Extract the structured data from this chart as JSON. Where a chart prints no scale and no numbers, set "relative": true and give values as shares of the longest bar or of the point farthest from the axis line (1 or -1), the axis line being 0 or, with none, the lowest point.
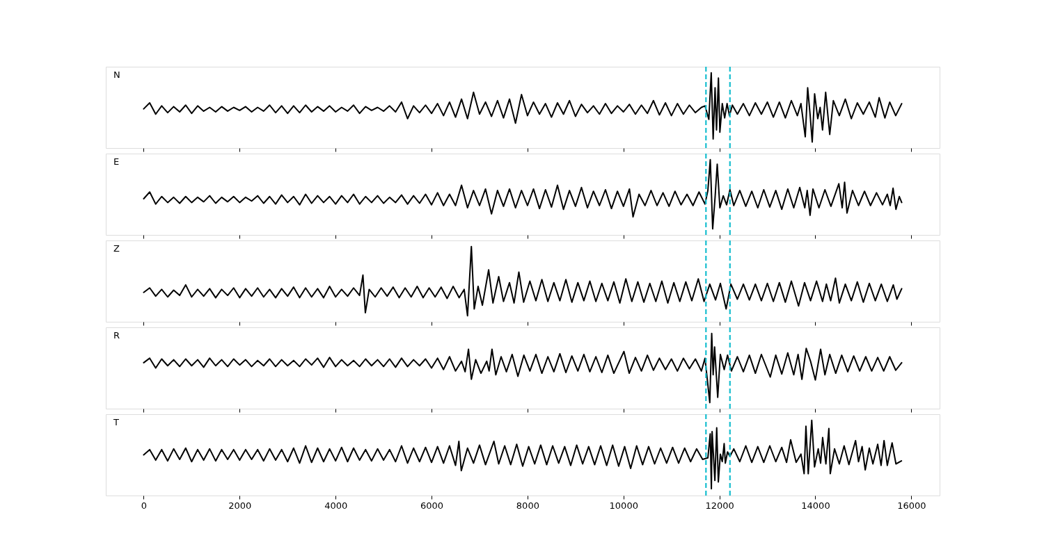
{
  "chart_data": [
    {
      "type": "line",
      "relative": true,
      "annotations": [
        "N"
      ],
      "line_style": "solid",
      "tick_labels": false,
      "xlim": [
        -790,
        16590
      ],
      "xticks": [
        0,
        2000,
        4000,
        6000,
        8000,
        10000,
        12000,
        14000,
        16000
      ],
      "ref_lines": [
        {
          "axis": "x",
          "value": 11720,
          "color": "#17becf",
          "line_style": "dashed"
        },
        {
          "axis": "x",
          "value": 12220,
          "color": "#17becf",
          "line_style": "dashed"
        }
      ],
      "x": [
        0,
        125,
        250,
        375,
        500,
        625,
        750,
        875,
        1000,
        1125,
        1250,
        1375,
        1500,
        1625,
        1750,
        1875,
        2000,
        2125,
        2250,
        2375,
        2500,
        2625,
        2750,
        2875,
        3000,
        3125,
        3250,
        3375,
        3500,
        3625,
        3750,
        3875,
        4000,
        4125,
        4250,
        4375,
        4500,
        4625,
        4750,
        4875,
        5000,
        5125,
        5250,
        5375,
        5500,
        5625,
        5750,
        5875,
        6000,
        6125,
        6250,
        6375,
        6500,
        6625,
        6750,
        6875,
        7000,
        7125,
        7250,
        7375,
        7500,
        7625,
        7750,
        7875,
        8000,
        8125,
        8250,
        8375,
        8500,
        8625,
        8750,
        8875,
        9000,
        9125,
        9250,
        9375,
        9500,
        9625,
        9750,
        9875,
        10000,
        10125,
        10250,
        10375,
        10500,
        10625,
        10750,
        10875,
        11000,
        11125,
        11250,
        11375,
        11500,
        11625,
        11700,
        11780,
        11830,
        11870,
        11910,
        11940,
        11980,
        12010,
        12060,
        12110,
        12160,
        12210,
        12270,
        12375,
        12500,
        12625,
        12750,
        12875,
        13000,
        13125,
        13250,
        13375,
        13500,
        13625,
        13700,
        13790,
        13840,
        13890,
        13935,
        13985,
        14050,
        14100,
        14150,
        14215,
        14300,
        14375,
        14500,
        14625,
        14750,
        14875,
        15000,
        15125,
        15250,
        15330,
        15450,
        15550,
        15675,
        15800
      ],
      "series": [
        {
          "color": "#000000",
          "values": [
            0.52,
            0.6,
            0.45,
            0.56,
            0.47,
            0.55,
            0.48,
            0.57,
            0.46,
            0.56,
            0.49,
            0.54,
            0.48,
            0.55,
            0.49,
            0.54,
            0.5,
            0.55,
            0.48,
            0.54,
            0.49,
            0.57,
            0.47,
            0.56,
            0.46,
            0.56,
            0.47,
            0.57,
            0.48,
            0.55,
            0.49,
            0.56,
            0.48,
            0.54,
            0.49,
            0.57,
            0.46,
            0.55,
            0.5,
            0.54,
            0.49,
            0.56,
            0.48,
            0.61,
            0.39,
            0.56,
            0.47,
            0.57,
            0.46,
            0.59,
            0.43,
            0.61,
            0.41,
            0.65,
            0.39,
            0.74,
            0.45,
            0.61,
            0.42,
            0.63,
            0.4,
            0.65,
            0.33,
            0.71,
            0.43,
            0.61,
            0.45,
            0.59,
            0.41,
            0.6,
            0.45,
            0.63,
            0.42,
            0.58,
            0.47,
            0.56,
            0.45,
            0.59,
            0.46,
            0.56,
            0.48,
            0.58,
            0.45,
            0.57,
            0.46,
            0.63,
            0.44,
            0.6,
            0.43,
            0.59,
            0.45,
            0.57,
            0.47,
            0.54,
            0.56,
            0.38,
            1.0,
            0.12,
            0.8,
            0.24,
            0.93,
            0.21,
            0.59,
            0.4,
            0.59,
            0.43,
            0.57,
            0.45,
            0.59,
            0.43,
            0.6,
            0.45,
            0.61,
            0.41,
            0.61,
            0.4,
            0.63,
            0.43,
            0.59,
            0.15,
            0.8,
            0.45,
            0.08,
            0.72,
            0.39,
            0.54,
            0.24,
            0.74,
            0.18,
            0.63,
            0.43,
            0.65,
            0.39,
            0.6,
            0.45,
            0.61,
            0.41,
            0.67,
            0.4,
            0.61,
            0.43,
            0.59
          ]
        }
      ]
    },
    {
      "type": "line",
      "relative": true,
      "annotations": [
        "E"
      ],
      "line_style": "solid",
      "tick_labels": false,
      "xlim": [
        -790,
        16590
      ],
      "xticks": [
        0,
        2000,
        4000,
        6000,
        8000,
        10000,
        12000,
        14000,
        16000
      ],
      "ref_lines": [
        {
          "axis": "x",
          "value": 11720,
          "color": "#17becf",
          "line_style": "dashed"
        },
        {
          "axis": "x",
          "value": 12220,
          "color": "#17becf",
          "line_style": "dashed"
        }
      ],
      "x": [
        0,
        125,
        250,
        375,
        500,
        625,
        750,
        875,
        1000,
        1125,
        1250,
        1375,
        1500,
        1625,
        1750,
        1875,
        2000,
        2125,
        2250,
        2375,
        2500,
        2625,
        2750,
        2875,
        3000,
        3125,
        3250,
        3375,
        3500,
        3625,
        3750,
        3875,
        4000,
        4125,
        4250,
        4375,
        4500,
        4625,
        4750,
        4875,
        5000,
        5125,
        5250,
        5375,
        5500,
        5625,
        5750,
        5875,
        6000,
        6125,
        6250,
        6375,
        6500,
        6625,
        6750,
        6875,
        7000,
        7125,
        7250,
        7375,
        7500,
        7625,
        7750,
        7875,
        8000,
        8125,
        8250,
        8375,
        8500,
        8625,
        8750,
        8875,
        9000,
        9125,
        9250,
        9375,
        9500,
        9625,
        9750,
        9875,
        10000,
        10125,
        10200,
        10325,
        10450,
        10575,
        10700,
        10825,
        10950,
        11075,
        11200,
        11325,
        11450,
        11575,
        11700,
        11760,
        11810,
        11860,
        11910,
        11955,
        12010,
        12080,
        12150,
        12220,
        12300,
        12425,
        12550,
        12675,
        12800,
        12925,
        13050,
        13175,
        13300,
        13425,
        13550,
        13675,
        13780,
        13830,
        13890,
        13950,
        14075,
        14200,
        14325,
        14490,
        14560,
        14610,
        14660,
        14775,
        14900,
        15025,
        15150,
        15275,
        15400,
        15500,
        15560,
        15620,
        15680,
        15750,
        15800
      ],
      "series": [
        {
          "color": "#000000",
          "values": [
            0.48,
            0.57,
            0.41,
            0.51,
            0.43,
            0.5,
            0.42,
            0.51,
            0.43,
            0.5,
            0.44,
            0.52,
            0.42,
            0.5,
            0.44,
            0.51,
            0.43,
            0.5,
            0.45,
            0.52,
            0.42,
            0.51,
            0.41,
            0.53,
            0.43,
            0.51,
            0.4,
            0.54,
            0.42,
            0.52,
            0.43,
            0.51,
            0.41,
            0.52,
            0.43,
            0.54,
            0.41,
            0.51,
            0.43,
            0.52,
            0.42,
            0.5,
            0.43,
            0.53,
            0.41,
            0.52,
            0.42,
            0.54,
            0.4,
            0.56,
            0.39,
            0.54,
            0.39,
            0.66,
            0.36,
            0.59,
            0.39,
            0.61,
            0.28,
            0.59,
            0.38,
            0.61,
            0.36,
            0.59,
            0.39,
            0.61,
            0.35,
            0.6,
            0.37,
            0.66,
            0.34,
            0.59,
            0.38,
            0.63,
            0.36,
            0.58,
            0.39,
            0.6,
            0.35,
            0.58,
            0.38,
            0.61,
            0.24,
            0.54,
            0.39,
            0.59,
            0.39,
            0.56,
            0.38,
            0.58,
            0.4,
            0.54,
            0.39,
            0.57,
            0.41,
            0.59,
            1.0,
            0.08,
            0.5,
            0.94,
            0.36,
            0.52,
            0.4,
            0.6,
            0.39,
            0.59,
            0.38,
            0.58,
            0.36,
            0.6,
            0.37,
            0.59,
            0.34,
            0.61,
            0.36,
            0.63,
            0.36,
            0.59,
            0.26,
            0.61,
            0.36,
            0.6,
            0.38,
            0.68,
            0.36,
            0.7,
            0.29,
            0.59,
            0.39,
            0.58,
            0.39,
            0.56,
            0.4,
            0.54,
            0.39,
            0.62,
            0.34,
            0.51,
            0.43
          ]
        }
      ]
    },
    {
      "type": "line",
      "relative": true,
      "annotations": [
        "Z"
      ],
      "line_style": "solid",
      "tick_labels": false,
      "xlim": [
        -790,
        16590
      ],
      "xticks": [
        0,
        2000,
        4000,
        6000,
        8000,
        10000,
        12000,
        14000,
        16000
      ],
      "ref_lines": [
        {
          "axis": "x",
          "value": 11720,
          "color": "#17becf",
          "line_style": "dashed"
        },
        {
          "axis": "x",
          "value": 12220,
          "color": "#17becf",
          "line_style": "dashed"
        }
      ],
      "x": [
        0,
        125,
        250,
        375,
        500,
        625,
        750,
        875,
        1000,
        1125,
        1250,
        1375,
        1500,
        1625,
        1750,
        1875,
        2000,
        2125,
        2250,
        2375,
        2500,
        2625,
        2750,
        2875,
        3000,
        3125,
        3250,
        3375,
        3500,
        3625,
        3750,
        3875,
        4000,
        4125,
        4250,
        4375,
        4500,
        4570,
        4620,
        4700,
        4825,
        4950,
        5075,
        5200,
        5325,
        5450,
        5575,
        5700,
        5825,
        5950,
        6075,
        6200,
        6325,
        6450,
        6575,
        6680,
        6750,
        6830,
        6890,
        6970,
        7060,
        7190,
        7280,
        7400,
        7500,
        7625,
        7720,
        7820,
        7920,
        8050,
        8175,
        8300,
        8425,
        8550,
        8675,
        8800,
        8925,
        9050,
        9175,
        9300,
        9425,
        9550,
        9675,
        9800,
        9925,
        10050,
        10175,
        10300,
        10425,
        10550,
        10675,
        10800,
        10925,
        11050,
        11175,
        11300,
        11425,
        11560,
        11680,
        11800,
        11920,
        12020,
        12140,
        12240,
        12375,
        12500,
        12625,
        12750,
        12875,
        13000,
        13125,
        13250,
        13375,
        13500,
        13650,
        13775,
        13900,
        14025,
        14150,
        14230,
        14320,
        14420,
        14500,
        14625,
        14750,
        14875,
        15000,
        15125,
        15250,
        15375,
        15500,
        15625,
        15700,
        15800
      ],
      "series": [
        {
          "color": "#000000",
          "values": [
            0.39,
            0.45,
            0.34,
            0.43,
            0.33,
            0.42,
            0.35,
            0.49,
            0.33,
            0.43,
            0.34,
            0.44,
            0.32,
            0.43,
            0.35,
            0.45,
            0.32,
            0.44,
            0.34,
            0.45,
            0.33,
            0.43,
            0.32,
            0.44,
            0.34,
            0.46,
            0.32,
            0.45,
            0.33,
            0.44,
            0.32,
            0.47,
            0.33,
            0.43,
            0.34,
            0.45,
            0.35,
            0.62,
            0.12,
            0.43,
            0.33,
            0.45,
            0.34,
            0.46,
            0.32,
            0.45,
            0.33,
            0.47,
            0.32,
            0.45,
            0.33,
            0.46,
            0.31,
            0.47,
            0.32,
            0.43,
            0.08,
            1.0,
            0.17,
            0.47,
            0.22,
            0.69,
            0.25,
            0.6,
            0.27,
            0.52,
            0.25,
            0.66,
            0.26,
            0.54,
            0.28,
            0.56,
            0.27,
            0.52,
            0.28,
            0.56,
            0.26,
            0.52,
            0.28,
            0.54,
            0.27,
            0.51,
            0.28,
            0.53,
            0.25,
            0.57,
            0.27,
            0.53,
            0.26,
            0.51,
            0.27,
            0.54,
            0.25,
            0.52,
            0.27,
            0.53,
            0.28,
            0.57,
            0.27,
            0.5,
            0.29,
            0.51,
            0.17,
            0.5,
            0.3,
            0.5,
            0.29,
            0.5,
            0.28,
            0.51,
            0.27,
            0.52,
            0.26,
            0.54,
            0.21,
            0.52,
            0.28,
            0.54,
            0.27,
            0.5,
            0.28,
            0.58,
            0.25,
            0.5,
            0.28,
            0.53,
            0.26,
            0.51,
            0.28,
            0.5,
            0.27,
            0.49,
            0.3,
            0.44
          ]
        }
      ]
    },
    {
      "type": "line",
      "relative": true,
      "annotations": [
        "R"
      ],
      "line_style": "solid",
      "tick_labels": false,
      "xlim": [
        -790,
        16590
      ],
      "xticks": [
        0,
        2000,
        4000,
        6000,
        8000,
        10000,
        12000,
        14000,
        16000
      ],
      "ref_lines": [
        {
          "axis": "x",
          "value": 11720,
          "color": "#17becf",
          "line_style": "dashed"
        },
        {
          "axis": "x",
          "value": 12220,
          "color": "#17becf",
          "line_style": "dashed"
        }
      ],
      "x": [
        0,
        125,
        250,
        375,
        500,
        625,
        750,
        875,
        1000,
        1125,
        1250,
        1375,
        1500,
        1625,
        1750,
        1875,
        2000,
        2125,
        2250,
        2375,
        2500,
        2625,
        2750,
        2875,
        3000,
        3125,
        3250,
        3375,
        3500,
        3625,
        3750,
        3875,
        4000,
        4125,
        4250,
        4375,
        4500,
        4625,
        4750,
        4875,
        5000,
        5125,
        5250,
        5375,
        5500,
        5625,
        5750,
        5875,
        6000,
        6125,
        6250,
        6375,
        6500,
        6625,
        6700,
        6770,
        6830,
        6920,
        7030,
        7150,
        7200,
        7260,
        7340,
        7450,
        7560,
        7680,
        7800,
        7925,
        8050,
        8175,
        8300,
        8425,
        8550,
        8675,
        8800,
        8925,
        9050,
        9175,
        9300,
        9425,
        9550,
        9675,
        9800,
        10010,
        10120,
        10250,
        10375,
        10500,
        10625,
        10750,
        10875,
        11000,
        11125,
        11250,
        11375,
        11500,
        11625,
        11700,
        11800,
        11840,
        11870,
        11900,
        11965,
        12020,
        12100,
        12170,
        12250,
        12375,
        12500,
        12625,
        12750,
        12875,
        13060,
        13175,
        13300,
        13425,
        13550,
        13640,
        13720,
        13810,
        13900,
        14000,
        14110,
        14200,
        14300,
        14425,
        14550,
        14675,
        14800,
        14925,
        15050,
        15175,
        15300,
        15425,
        15550,
        15675,
        15800
      ],
      "series": [
        {
          "color": "#000000",
          "values": [
            0.61,
            0.67,
            0.54,
            0.66,
            0.57,
            0.65,
            0.56,
            0.66,
            0.57,
            0.65,
            0.55,
            0.67,
            0.57,
            0.65,
            0.56,
            0.66,
            0.58,
            0.65,
            0.56,
            0.64,
            0.57,
            0.66,
            0.56,
            0.65,
            0.57,
            0.64,
            0.56,
            0.66,
            0.58,
            0.67,
            0.55,
            0.68,
            0.56,
            0.65,
            0.57,
            0.64,
            0.56,
            0.66,
            0.57,
            0.65,
            0.56,
            0.66,
            0.55,
            0.67,
            0.56,
            0.65,
            0.57,
            0.66,
            0.54,
            0.67,
            0.52,
            0.69,
            0.5,
            0.63,
            0.49,
            0.79,
            0.39,
            0.65,
            0.47,
            0.63,
            0.5,
            0.79,
            0.45,
            0.69,
            0.49,
            0.72,
            0.43,
            0.71,
            0.5,
            0.72,
            0.47,
            0.69,
            0.49,
            0.73,
            0.48,
            0.7,
            0.5,
            0.72,
            0.49,
            0.69,
            0.48,
            0.71,
            0.47,
            0.76,
            0.47,
            0.68,
            0.5,
            0.71,
            0.51,
            0.67,
            0.52,
            0.66,
            0.5,
            0.67,
            0.53,
            0.66,
            0.5,
            0.67,
            0.08,
            1.0,
            0.45,
            0.82,
            0.15,
            0.72,
            0.52,
            0.71,
            0.5,
            0.69,
            0.49,
            0.71,
            0.47,
            0.72,
            0.42,
            0.71,
            0.46,
            0.74,
            0.45,
            0.72,
            0.39,
            0.8,
            0.63,
            0.38,
            0.79,
            0.45,
            0.72,
            0.47,
            0.71,
            0.49,
            0.7,
            0.5,
            0.69,
            0.5,
            0.68,
            0.5,
            0.69,
            0.51,
            0.61
          ]
        }
      ]
    },
    {
      "type": "line",
      "relative": true,
      "annotations": [
        "T"
      ],
      "line_style": "solid",
      "tick_labels": "x",
      "xlim": [
        -790,
        16590
      ],
      "xticks": [
        0,
        2000,
        4000,
        6000,
        8000,
        10000,
        12000,
        14000,
        16000
      ],
      "ref_lines": [
        {
          "axis": "x",
          "value": 11720,
          "color": "#17becf",
          "line_style": "dashed"
        },
        {
          "axis": "x",
          "value": 12220,
          "color": "#17becf",
          "line_style": "dashed"
        }
      ],
      "x": [
        0,
        125,
        250,
        375,
        500,
        625,
        750,
        875,
        1000,
        1125,
        1250,
        1375,
        1500,
        1625,
        1750,
        1875,
        2000,
        2125,
        2250,
        2375,
        2500,
        2625,
        2750,
        2875,
        3000,
        3125,
        3250,
        3375,
        3500,
        3625,
        3750,
        3875,
        4000,
        4125,
        4250,
        4375,
        4500,
        4625,
        4750,
        4875,
        5000,
        5125,
        5250,
        5375,
        5500,
        5625,
        5750,
        5875,
        6000,
        6125,
        6250,
        6375,
        6500,
        6570,
        6620,
        6750,
        6875,
        7000,
        7125,
        7300,
        7400,
        7525,
        7650,
        7775,
        7900,
        8025,
        8150,
        8275,
        8400,
        8525,
        8650,
        8775,
        8900,
        9025,
        9150,
        9275,
        9400,
        9525,
        9650,
        9775,
        9900,
        10025,
        10150,
        10275,
        10400,
        10525,
        10650,
        10775,
        10900,
        11025,
        11150,
        11275,
        11400,
        11525,
        11650,
        11760,
        11809,
        11833,
        11848,
        11906,
        11944,
        11978,
        12020,
        12060,
        12099,
        12124,
        12170,
        12220,
        12300,
        12425,
        12550,
        12675,
        12800,
        12925,
        13050,
        13175,
        13300,
        13400,
        13485,
        13600,
        13700,
        13766,
        13804,
        13852,
        13925,
        13983,
        14060,
        14110,
        14152,
        14220,
        14282,
        14311,
        14400,
        14500,
        14600,
        14700,
        14838,
        14900,
        14975,
        15040,
        15125,
        15200,
        15300,
        15370,
        15432,
        15500,
        15600,
        15680,
        15795
      ],
      "series": [
        {
          "color": "#000000",
          "values": [
            0.54,
            0.61,
            0.47,
            0.61,
            0.46,
            0.62,
            0.48,
            0.63,
            0.45,
            0.61,
            0.47,
            0.62,
            0.46,
            0.61,
            0.48,
            0.61,
            0.47,
            0.61,
            0.48,
            0.61,
            0.46,
            0.62,
            0.47,
            0.61,
            0.45,
            0.63,
            0.43,
            0.66,
            0.44,
            0.63,
            0.45,
            0.62,
            0.46,
            0.64,
            0.45,
            0.63,
            0.47,
            0.61,
            0.46,
            0.62,
            0.47,
            0.61,
            0.45,
            0.66,
            0.43,
            0.63,
            0.45,
            0.64,
            0.44,
            0.65,
            0.43,
            0.66,
            0.4,
            0.72,
            0.33,
            0.63,
            0.43,
            0.67,
            0.41,
            0.72,
            0.42,
            0.66,
            0.41,
            0.68,
            0.39,
            0.65,
            0.42,
            0.67,
            0.41,
            0.66,
            0.43,
            0.65,
            0.4,
            0.67,
            0.42,
            0.65,
            0.41,
            0.66,
            0.4,
            0.67,
            0.39,
            0.65,
            0.36,
            0.66,
            0.41,
            0.65,
            0.42,
            0.63,
            0.43,
            0.64,
            0.43,
            0.63,
            0.45,
            0.62,
            0.48,
            0.5,
            0.82,
            0.09,
            0.85,
            0.2,
            0.9,
            0.18,
            0.55,
            0.45,
            0.69,
            0.43,
            0.58,
            0.52,
            0.62,
            0.45,
            0.66,
            0.44,
            0.65,
            0.44,
            0.66,
            0.45,
            0.64,
            0.44,
            0.74,
            0.44,
            0.55,
            0.29,
            0.92,
            0.29,
            1.0,
            0.38,
            0.62,
            0.43,
            0.77,
            0.42,
            0.89,
            0.29,
            0.62,
            0.42,
            0.66,
            0.41,
            0.73,
            0.45,
            0.65,
            0.34,
            0.63,
            0.42,
            0.68,
            0.4,
            0.73,
            0.4,
            0.7,
            0.42,
            0.46
          ]
        }
      ]
    }
  ]
}
